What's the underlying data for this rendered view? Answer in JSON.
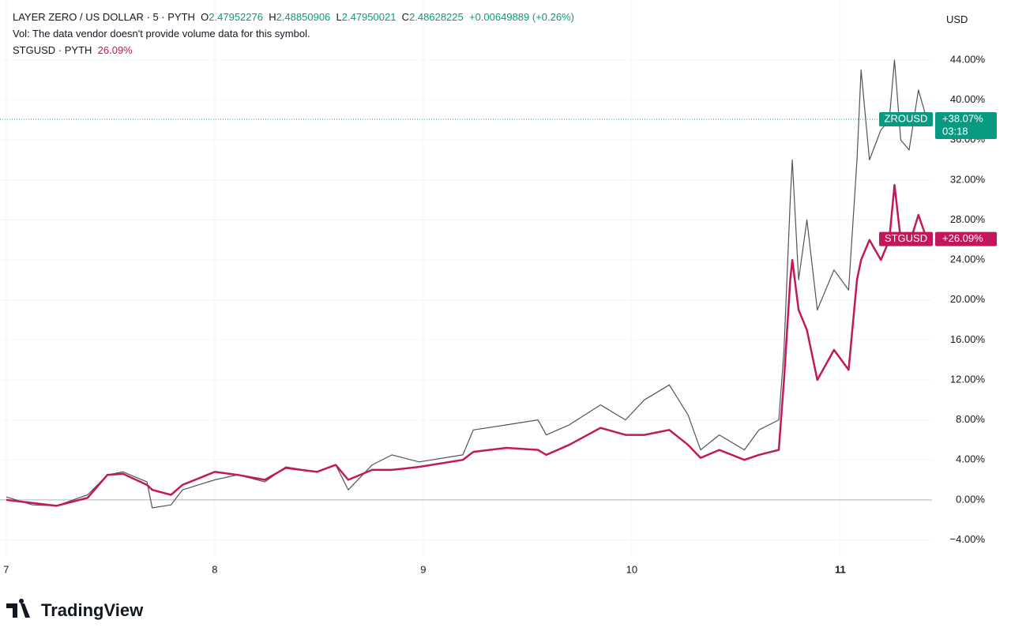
{
  "header": {
    "symbol": "LAYER ZERO / US DOLLAR · 5 · PYTH",
    "o_label": "O",
    "o_value": "2.47952276",
    "h_label": "H",
    "h_value": "2.48850906",
    "l_label": "L",
    "l_value": "2.47950021",
    "c_label": "C",
    "c_value": "2.48628225",
    "change": "+0.00649889 (+0.26%)",
    "vol_note": "Vol: The data vendor doesn't provide volume data for this symbol.",
    "compare_symbol": "STGUSD · PYTH",
    "compare_value": "26.09%",
    "currency": "USD",
    "brand": "TradingView"
  },
  "chart_data": {
    "type": "line",
    "x": [
      7.0,
      7.125,
      7.24,
      7.39,
      7.485,
      7.56,
      7.675,
      7.7,
      7.79,
      7.845,
      8.0,
      8.11,
      8.24,
      8.34,
      8.49,
      8.58,
      8.64,
      8.755,
      8.85,
      8.98,
      9.19,
      9.24,
      9.4,
      9.55,
      9.59,
      9.7,
      9.85,
      9.97,
      10.06,
      10.18,
      10.27,
      10.33,
      10.42,
      10.54,
      10.61,
      10.705,
      10.73,
      10.76,
      10.77,
      10.8,
      10.84,
      10.89,
      10.97,
      11.04,
      11.08,
      11.1,
      11.14,
      11.195,
      11.235,
      11.26,
      11.29,
      11.33,
      11.375,
      11.415
    ],
    "series": [
      {
        "name": "ZROUSD",
        "color": "#089981",
        "line_color": "#50535e",
        "values": [
          0.3,
          -0.5,
          -0.6,
          0.5,
          2.5,
          2.8,
          1.8,
          -0.8,
          -0.5,
          1.0,
          2.0,
          2.5,
          1.8,
          3.3,
          2.8,
          3.5,
          1.0,
          3.5,
          4.5,
          3.8,
          4.5,
          7.0,
          7.5,
          8.0,
          6.5,
          7.5,
          9.5,
          8.0,
          10.0,
          11.5,
          8.5,
          5.0,
          6.5,
          5.0,
          7.0,
          8.0,
          15.0,
          30.0,
          34.0,
          22.0,
          28.0,
          19.0,
          23.0,
          21.0,
          34.0,
          43.0,
          34.0,
          37.0,
          38.0,
          44.0,
          36.0,
          35.0,
          41.0,
          38.07
        ],
        "last_label": "+38.07%",
        "countdown": "03:18"
      },
      {
        "name": "STGUSD",
        "color": "#c2185b",
        "line_color": "#c2185b",
        "values": [
          0.0,
          -0.3,
          -0.6,
          0.2,
          2.5,
          2.6,
          1.5,
          1.0,
          0.5,
          1.5,
          2.8,
          2.5,
          2.0,
          3.2,
          2.8,
          3.5,
          2.0,
          3.0,
          3.0,
          3.3,
          4.0,
          4.8,
          5.2,
          5.0,
          4.5,
          5.5,
          7.2,
          6.5,
          6.5,
          7.0,
          5.5,
          4.2,
          5.0,
          4.0,
          4.5,
          5.0,
          12.0,
          22.0,
          24.0,
          19.0,
          17.0,
          12.0,
          15.0,
          13.0,
          22.0,
          24.0,
          26.0,
          24.0,
          26.0,
          31.5,
          26.0,
          25.5,
          28.5,
          26.09
        ],
        "last_label": "+26.09%"
      }
    ],
    "xlim": [
      6.97,
      11.44
    ],
    "xticks": [
      7,
      8,
      9,
      10,
      11
    ],
    "xtick_bold": [
      false,
      false,
      false,
      false,
      true
    ],
    "ylim": [
      -5.7,
      50
    ],
    "yticks": [
      {
        "value": -4,
        "label": "−4.00%"
      },
      {
        "value": 0,
        "label": "0.00%"
      },
      {
        "value": 4,
        "label": "4.00%"
      },
      {
        "value": 8,
        "label": "8.00%"
      },
      {
        "value": 12,
        "label": "12.00%"
      },
      {
        "value": 16,
        "label": "16.00%"
      },
      {
        "value": 20,
        "label": "20.00%"
      },
      {
        "value": 24,
        "label": "24.00%"
      },
      {
        "value": 28,
        "label": "28.00%"
      },
      {
        "value": 32,
        "label": "32.00%"
      },
      {
        "value": 36,
        "label": "36.00%"
      },
      {
        "value": 40,
        "label": "40.00%"
      },
      {
        "value": 44,
        "label": "44.00%"
      }
    ],
    "grid": true,
    "baseline": 0
  }
}
